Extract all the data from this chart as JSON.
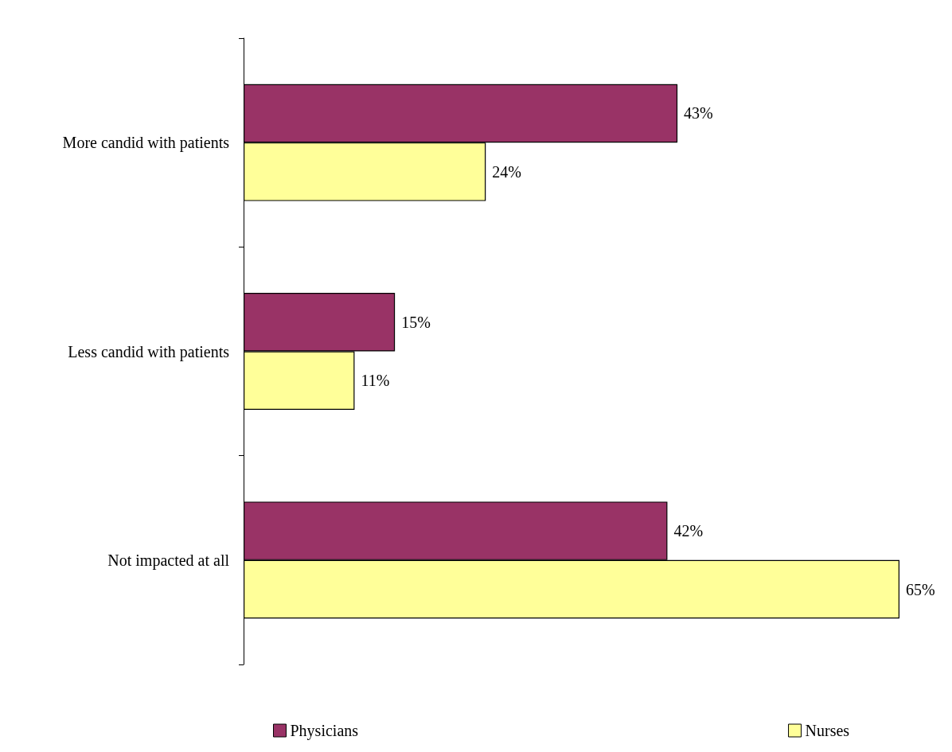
{
  "chart_data": {
    "type": "bar",
    "orientation": "horizontal",
    "categories": [
      "More candid with patients",
      "Less candid with patients",
      "Not impacted at all"
    ],
    "series": [
      {
        "name": "Physicians",
        "color": "#993366",
        "values": [
          43,
          15,
          42
        ],
        "value_labels": [
          "43%",
          "15%",
          "42%"
        ]
      },
      {
        "name": "Nurses",
        "color": "#ffff99",
        "values": [
          24,
          11,
          65
        ],
        "value_labels": [
          "24%",
          "11%",
          "65%"
        ]
      }
    ],
    "legend": "bottom"
  }
}
